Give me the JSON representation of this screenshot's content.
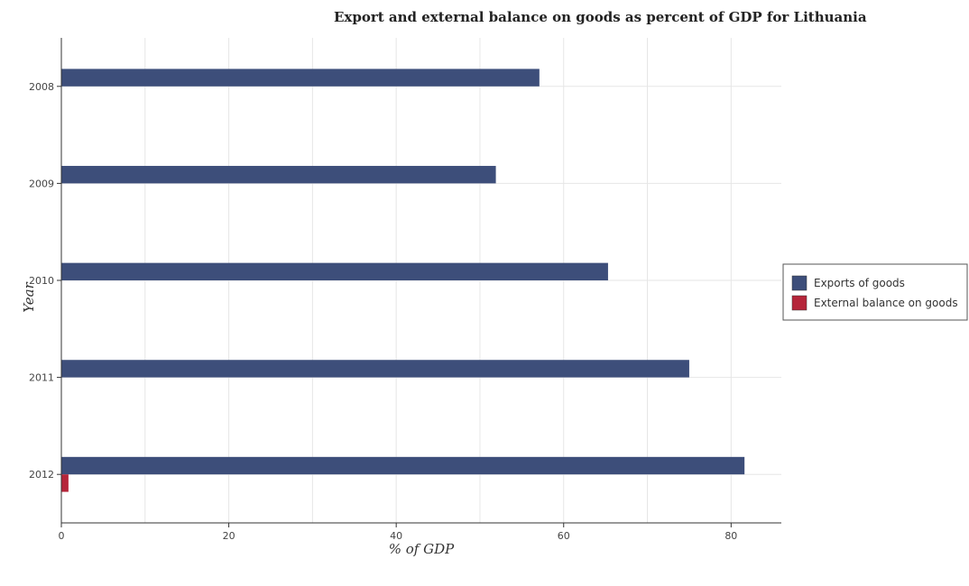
{
  "chart_data": {
    "type": "bar",
    "orientation": "horizontal",
    "title": "Export and external balance on goods as percent of GDP for Lithuania",
    "xlabel": "% of GDP",
    "ylabel": "Year",
    "categories": [
      "2008",
      "2009",
      "2010",
      "2011",
      "2012"
    ],
    "series": [
      {
        "name": "Exports of goods",
        "color": "#3d4e7a",
        "values": [
          57.1,
          51.9,
          65.3,
          75.0,
          81.6
        ]
      },
      {
        "name": "External balance on goods",
        "color": "#b5263a",
        "values": [
          0,
          0,
          0,
          0,
          0.85
        ]
      }
    ],
    "xlim": [
      0,
      86
    ],
    "xticks": [
      0,
      20,
      40,
      60,
      80
    ],
    "grid": true,
    "legend_position": "right"
  }
}
